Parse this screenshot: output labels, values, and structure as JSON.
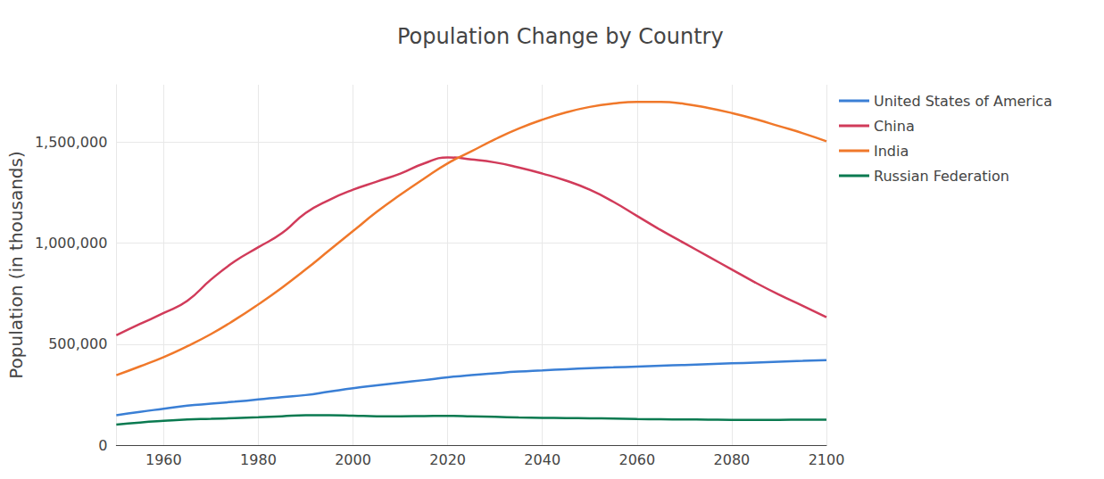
{
  "chart_data": {
    "type": "line",
    "title": "Population Change by Country",
    "y_label": "Population (in thousands)",
    "x": [
      1950,
      1955,
      1960,
      1965,
      1970,
      1975,
      1980,
      1985,
      1990,
      1995,
      2000,
      2005,
      2010,
      2015,
      2020,
      2025,
      2030,
      2035,
      2040,
      2045,
      2050,
      2055,
      2060,
      2065,
      2070,
      2075,
      2080,
      2085,
      2090,
      2095,
      2100
    ],
    "series": [
      {
        "name": "United States of America",
        "color": "#3a7fd5",
        "values": [
          148000,
          165000,
          180000,
          195000,
          205000,
          215000,
          226000,
          238000,
          248000,
          265000,
          282000,
          296000,
          309000,
          322000,
          336000,
          347000,
          356000,
          364000,
          370000,
          376000,
          381000,
          385000,
          389000,
          393000,
          397000,
          401000,
          405000,
          409000,
          413000,
          417000,
          421000
        ]
      },
      {
        "name": "China",
        "color": "#d13b5a",
        "values": [
          544000,
          600000,
          654000,
          715000,
          820000,
          910000,
          980000,
          1050000,
          1150000,
          1215000,
          1265000,
          1305000,
          1345000,
          1395000,
          1425000,
          1415000,
          1400000,
          1375000,
          1345000,
          1310000,
          1265000,
          1205000,
          1135000,
          1065000,
          1000000,
          935000,
          870000,
          805000,
          745000,
          690000,
          633000
        ]
      },
      {
        "name": "India",
        "color": "#f0782a",
        "values": [
          346000,
          390000,
          436000,
          490000,
          550000,
          620000,
          697000,
          780000,
          870000,
          965000,
          1060000,
          1155000,
          1240000,
          1320000,
          1396000,
          1455000,
          1515000,
          1568000,
          1612000,
          1648000,
          1675000,
          1692000,
          1700000,
          1700000,
          1690000,
          1670000,
          1645000,
          1615000,
          1580000,
          1545000,
          1505000
        ]
      },
      {
        "name": "Russian Federation",
        "color": "#0a7a50",
        "values": [
          102000,
          112000,
          120000,
          127000,
          130000,
          134000,
          138000,
          143000,
          148000,
          148000,
          146000,
          143000,
          143000,
          144000,
          145000,
          143000,
          140000,
          137000,
          135000,
          134000,
          133000,
          131000,
          129000,
          128000,
          127000,
          126000,
          125000,
          125000,
          125000,
          126000,
          126000
        ]
      }
    ],
    "xlim": [
      1950,
      2100
    ],
    "xticks": [
      1960,
      1980,
      2000,
      2020,
      2040,
      2060,
      2080,
      2100
    ],
    "ylim": [
      0,
      1785000
    ],
    "yticks": [
      0,
      {
        "value": 500000,
        "label": "500,000"
      },
      {
        "value": 1000000,
        "label": "1,000,000"
      },
      {
        "value": 1500000,
        "label": "1,500,000"
      }
    ],
    "grid": true,
    "legend": "top-right"
  }
}
